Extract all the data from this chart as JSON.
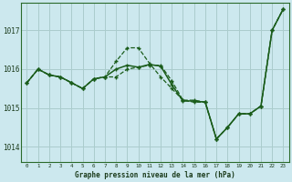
{
  "title": "Graphe pression niveau de la mer (hPa)",
  "background_color": "#cce8ee",
  "grid_color": "#aacccc",
  "line_color": "#1a5c1a",
  "marker_color": "#1a5c1a",
  "x_labels": [
    "0",
    "1",
    "2",
    "3",
    "4",
    "5",
    "6",
    "7",
    "8",
    "9",
    "10",
    "11",
    "12",
    "13",
    "14",
    "15",
    "16",
    "17",
    "18",
    "19",
    "20",
    "21",
    "22",
    "23"
  ],
  "xlim": [
    -0.5,
    23.5
  ],
  "ylim": [
    1013.6,
    1017.7
  ],
  "yticks": [
    1014,
    1015,
    1016,
    1017
  ],
  "series": [
    {
      "y": [
        1015.65,
        1016.0,
        1015.85,
        1015.8,
        1015.65,
        1015.5,
        1015.75,
        1015.8,
        1016.2,
        1016.55,
        1016.55,
        1016.15,
        1015.8,
        1015.5,
        1015.2,
        1015.15,
        1015.15,
        1014.2,
        1014.5,
        1014.85,
        1014.85,
        1015.05,
        1017.0,
        1017.55
      ],
      "linestyle": "--",
      "linewidth": 0.9
    },
    {
      "y": [
        1015.65,
        1016.0,
        1015.85,
        1015.8,
        1015.65,
        1015.5,
        1015.75,
        1015.8,
        1015.8,
        1016.0,
        1016.05,
        1016.1,
        1016.1,
        1015.7,
        1015.2,
        1015.2,
        1015.15,
        1014.2,
        1014.5,
        1014.85,
        1014.85,
        1015.05,
        1017.0,
        1017.55
      ],
      "linestyle": "--",
      "linewidth": 0.9
    },
    {
      "y": [
        1015.65,
        1016.0,
        1015.85,
        1015.8,
        1015.65,
        1015.5,
        1015.75,
        1015.8,
        1016.0,
        1016.1,
        1016.05,
        1016.12,
        1016.08,
        1015.6,
        1015.18,
        1015.18,
        1015.15,
        1014.2,
        1014.5,
        1014.85,
        1014.85,
        1015.05,
        1017.0,
        1017.55
      ],
      "linestyle": "-",
      "linewidth": 1.1
    }
  ]
}
